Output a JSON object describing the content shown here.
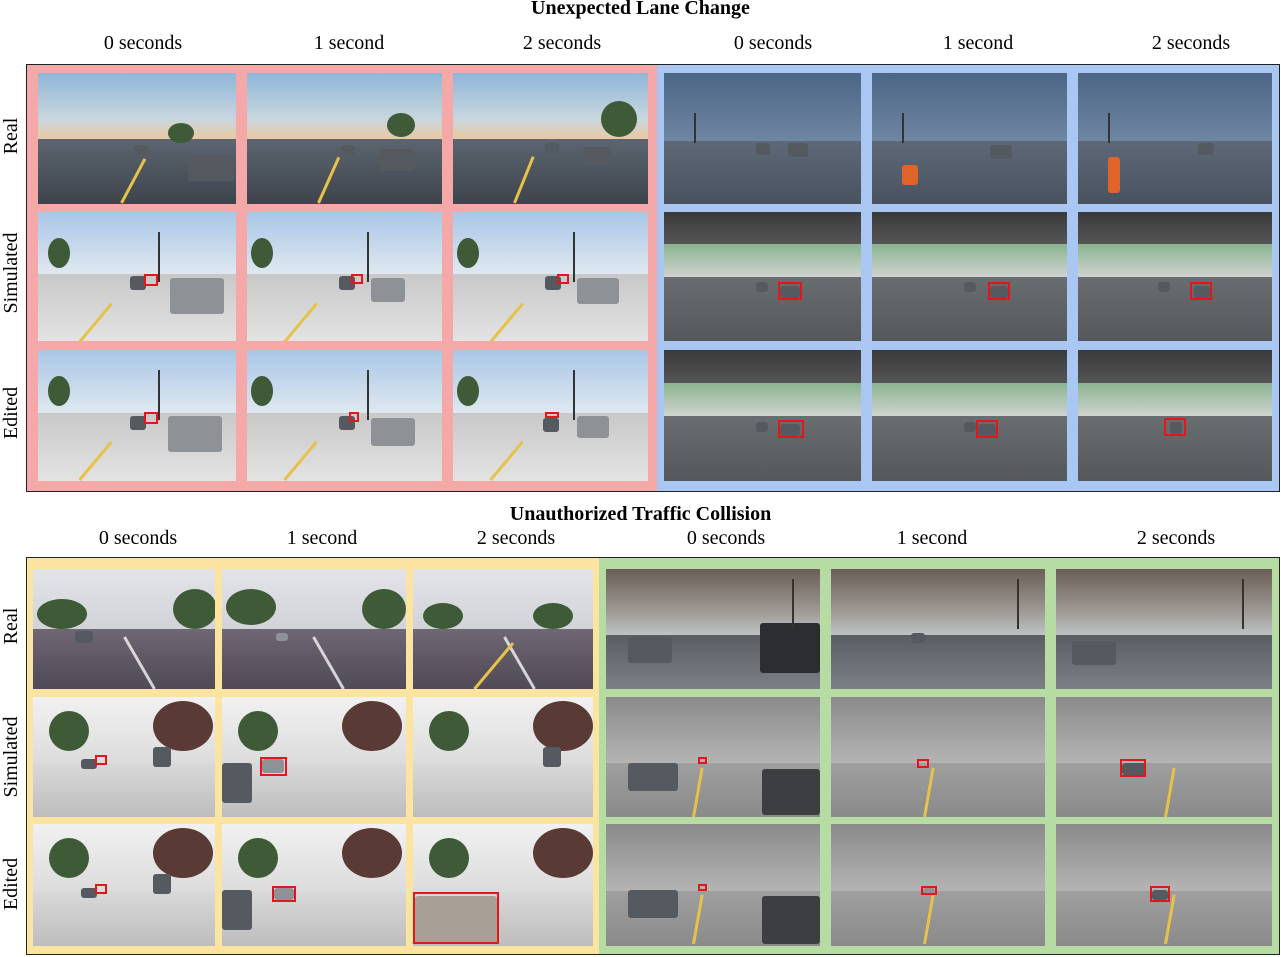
{
  "sections": [
    {
      "title": "Unexpected Lane Change",
      "column_labels": [
        "0 seconds",
        "1 second",
        "2 seconds",
        "0 seconds",
        "1 second",
        "2 seconds"
      ],
      "row_labels": [
        "Real",
        "Simulated",
        "Edited"
      ],
      "panel_colors": [
        "#f4a9a8",
        "#aac6f2"
      ]
    },
    {
      "title": "Unauthorized Traffic Collision",
      "column_labels": [
        "0 seconds",
        "1 second",
        "2 seconds",
        "0 seconds",
        "1 second",
        "2 seconds"
      ],
      "row_labels": [
        "Real",
        "Simulated",
        "Edited"
      ],
      "panel_colors": [
        "#fbe3a0",
        "#b6dba3"
      ]
    }
  ],
  "highlight_color": "#e4161b"
}
